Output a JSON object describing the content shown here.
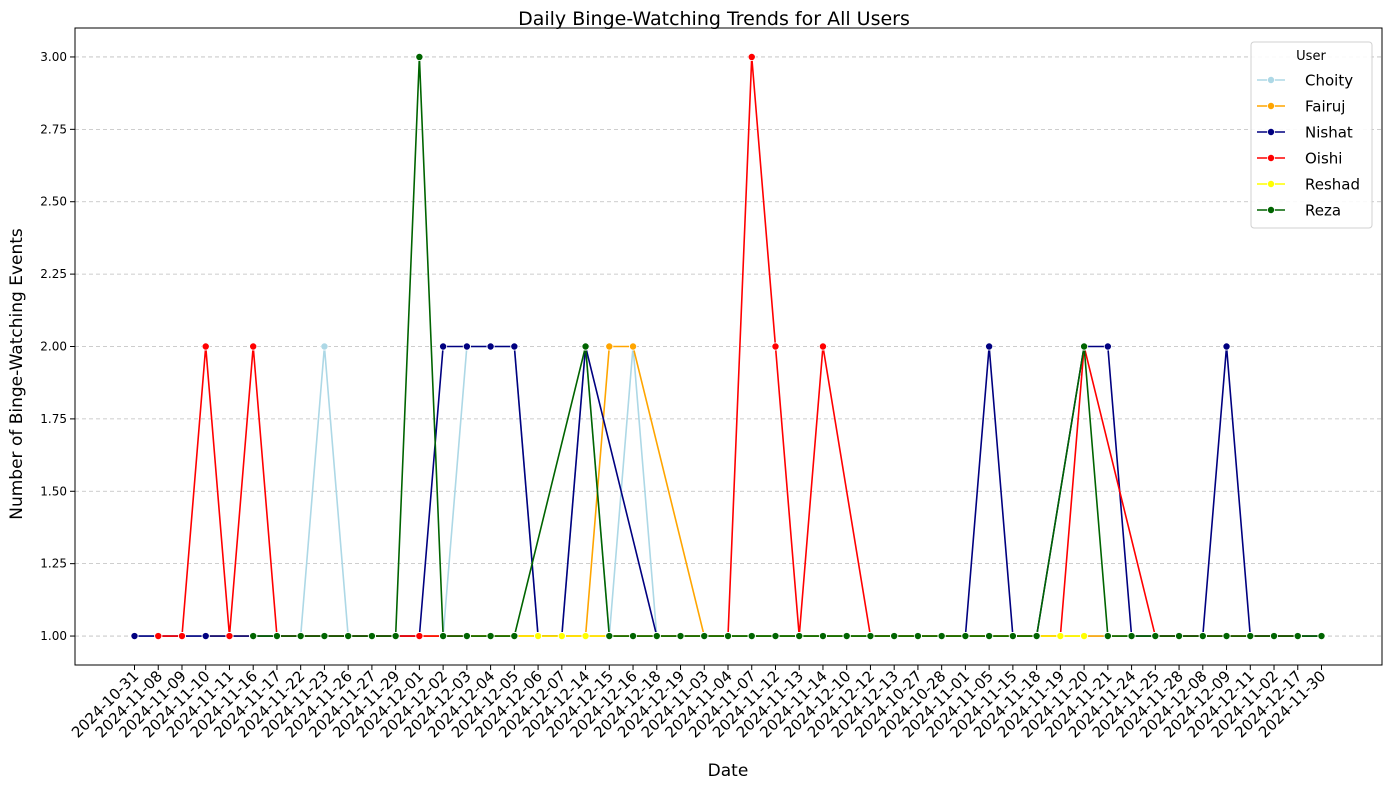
{
  "chart_data": {
    "type": "line",
    "title": "Daily Binge-Watching Trends for All Users",
    "xlabel": "Date",
    "ylabel": "Number of Binge-Watching Events",
    "ylim": [
      0.9,
      3.1
    ],
    "yticks": [
      "1.00",
      "1.25",
      "1.50",
      "1.75",
      "2.00",
      "2.25",
      "2.50",
      "2.75",
      "3.00"
    ],
    "ytick_values": [
      1.0,
      1.25,
      1.5,
      1.75,
      2.0,
      2.25,
      2.5,
      2.75,
      3.0
    ],
    "grid": "horizontal dashed",
    "legend": {
      "title": "User",
      "placement": "top-right"
    },
    "categories": [
      "2024-10-31",
      "2024-11-08",
      "2024-11-09",
      "2024-11-10",
      "2024-11-11",
      "2024-11-16",
      "2024-11-17",
      "2024-11-22",
      "2024-11-23",
      "2024-11-26",
      "2024-11-27",
      "2024-11-29",
      "2024-12-01",
      "2024-12-02",
      "2024-12-03",
      "2024-12-04",
      "2024-12-05",
      "2024-12-06",
      "2024-12-07",
      "2024-12-14",
      "2024-12-15",
      "2024-12-16",
      "2024-12-18",
      "2024-12-19",
      "2024-11-03",
      "2024-11-04",
      "2024-11-07",
      "2024-11-12",
      "2024-11-13",
      "2024-11-14",
      "2024-12-10",
      "2024-12-12",
      "2024-12-13",
      "2024-10-27",
      "2024-10-28",
      "2024-11-01",
      "2024-11-05",
      "2024-11-15",
      "2024-11-18",
      "2024-11-19",
      "2024-11-20",
      "2024-11-21",
      "2024-11-24",
      "2024-11-25",
      "2024-11-28",
      "2024-12-08",
      "2024-12-09",
      "2024-12-11",
      "2024-11-02",
      "2024-12-17",
      "2024-11-30"
    ],
    "series": [
      {
        "name": "Choity",
        "color": "#add8e6",
        "values": [
          1,
          1,
          1,
          1,
          1,
          1,
          1,
          1,
          2,
          1,
          1,
          1,
          null,
          1,
          2,
          2,
          2,
          1,
          1,
          2,
          1,
          2,
          1,
          1,
          1,
          1,
          1,
          1,
          1,
          1,
          1,
          1,
          1,
          1,
          1,
          1,
          1,
          1,
          1,
          1,
          1,
          1,
          1,
          1,
          1,
          1,
          1,
          1,
          1,
          1,
          1
        ]
      },
      {
        "name": "Fairuj",
        "color": "#ffa500",
        "values": [
          null,
          null,
          null,
          1,
          1,
          1,
          1,
          1,
          1,
          1,
          1,
          1,
          1,
          1,
          1,
          1,
          1,
          1,
          1,
          1,
          2,
          2,
          null,
          null,
          1,
          1,
          1,
          1,
          1,
          1,
          1,
          1,
          1,
          1,
          1,
          1,
          1,
          1,
          1,
          1,
          1,
          1,
          1,
          1,
          1,
          1,
          1,
          1,
          1,
          1,
          1
        ]
      },
      {
        "name": "Nishat",
        "color": "#000080",
        "values": [
          1,
          1,
          1,
          1,
          1,
          1,
          1,
          1,
          1,
          1,
          1,
          1,
          1,
          2,
          2,
          2,
          2,
          1,
          1,
          2,
          null,
          null,
          1,
          1,
          1,
          1,
          1,
          1,
          1,
          1,
          1,
          1,
          1,
          1,
          1,
          1,
          2,
          1,
          1,
          null,
          2,
          2,
          1,
          1,
          1,
          1,
          2,
          1,
          1,
          1,
          1
        ]
      },
      {
        "name": "Oishi",
        "color": "#ff0000",
        "values": [
          null,
          1,
          1,
          2,
          1,
          2,
          1,
          null,
          null,
          null,
          null,
          1,
          1,
          null,
          null,
          null,
          null,
          null,
          null,
          null,
          null,
          null,
          null,
          null,
          null,
          1,
          3,
          2,
          1,
          2,
          null,
          1,
          null,
          null,
          null,
          null,
          1,
          null,
          null,
          1,
          2,
          null,
          null,
          1,
          null,
          null,
          null,
          null,
          1,
          1,
          null
        ]
      },
      {
        "name": "Reshad",
        "color": "#ffff00",
        "values": [
          null,
          null,
          null,
          null,
          null,
          null,
          null,
          null,
          null,
          null,
          null,
          null,
          null,
          null,
          1,
          null,
          1,
          1,
          1,
          1,
          null,
          null,
          null,
          null,
          null,
          null,
          null,
          null,
          null,
          null,
          null,
          null,
          null,
          null,
          null,
          null,
          null,
          1,
          1,
          1,
          1,
          null,
          null,
          null,
          null,
          null,
          null,
          null,
          null,
          null,
          null
        ]
      },
      {
        "name": "Reza",
        "color": "#006400",
        "values": [
          null,
          null,
          null,
          null,
          null,
          1,
          1,
          1,
          1,
          1,
          1,
          1,
          3,
          1,
          1,
          1,
          1,
          null,
          null,
          2,
          1,
          1,
          1,
          1,
          1,
          1,
          1,
          1,
          1,
          1,
          1,
          1,
          1,
          1,
          1,
          1,
          1,
          1,
          1,
          null,
          2,
          1,
          1,
          1,
          1,
          1,
          1,
          1,
          1,
          1,
          1
        ]
      }
    ]
  }
}
